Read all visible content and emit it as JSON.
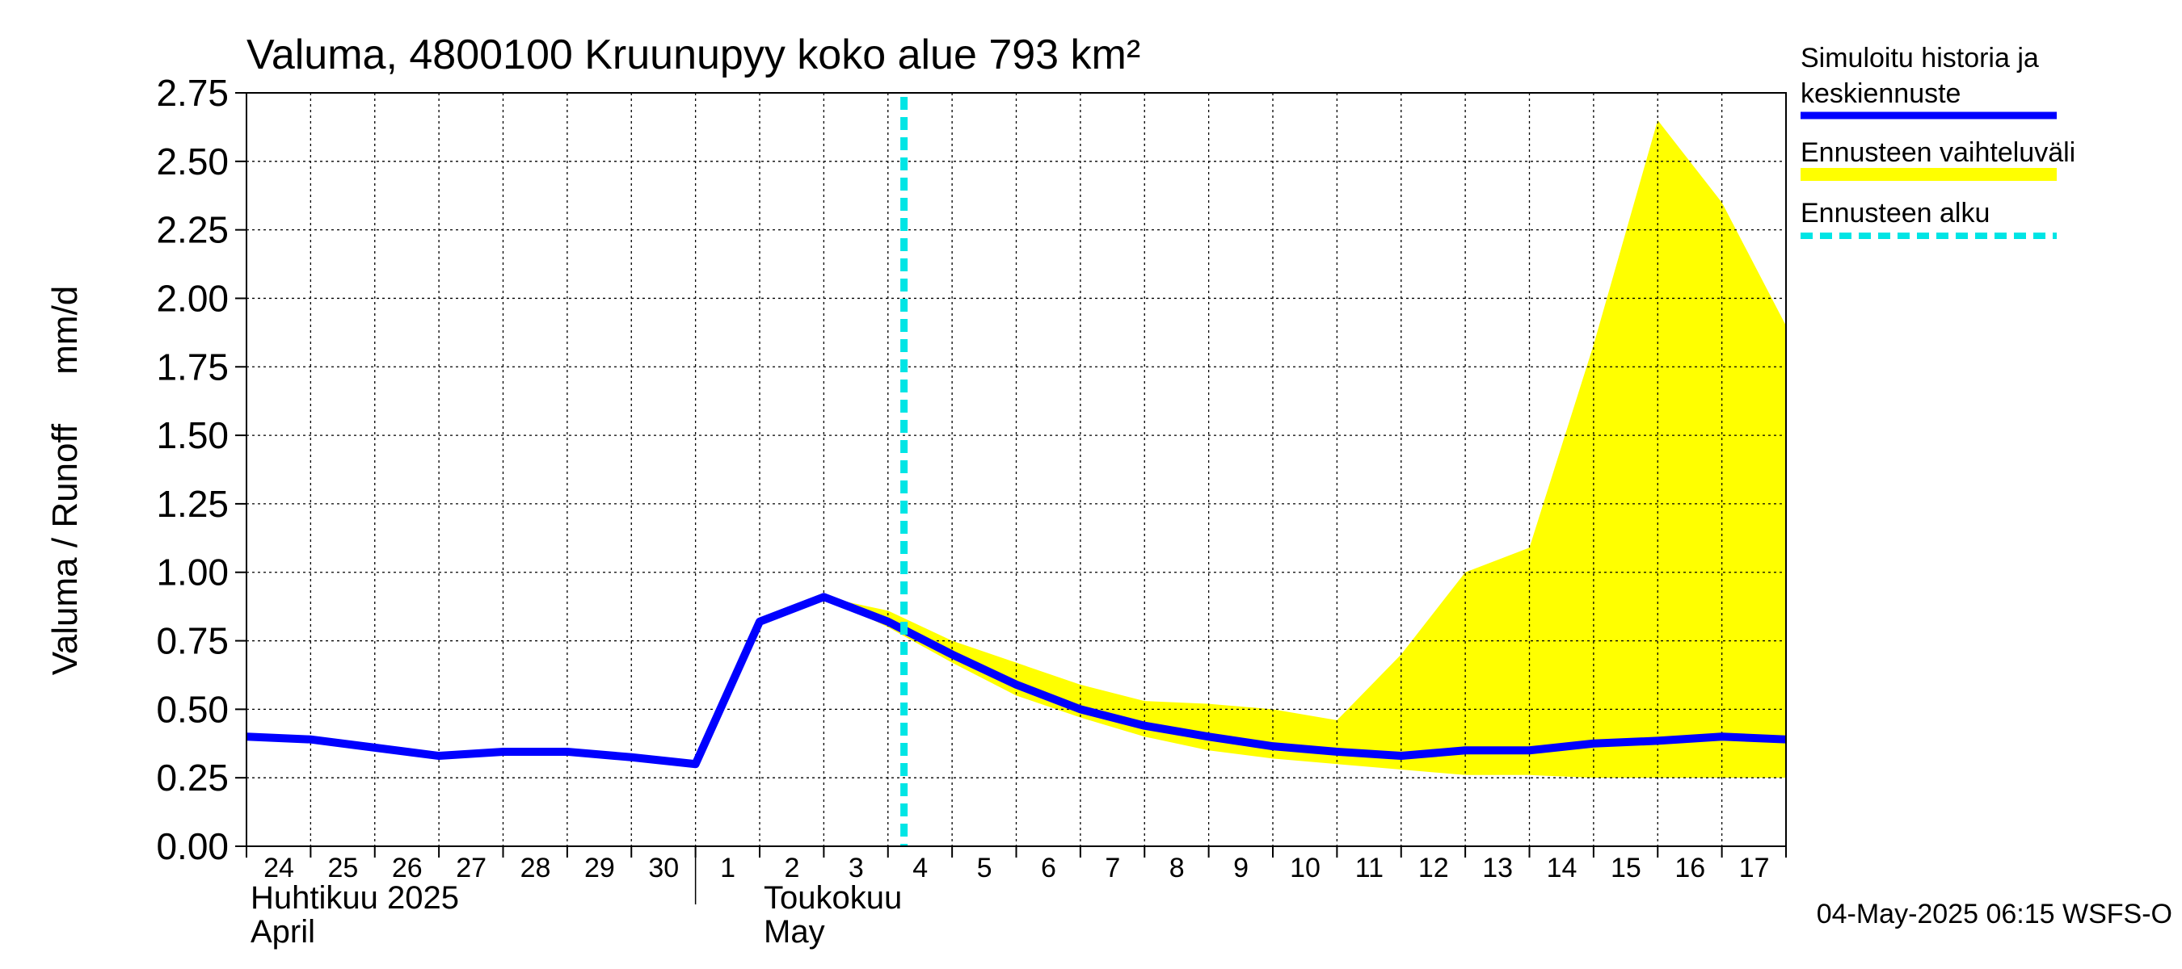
{
  "chart_data": {
    "type": "area",
    "title": "Valuma, 4800100 Kruunupyy koko alue 793 km²",
    "ylabel": "Valuma / Runoff     mm/d",
    "ylim": [
      0,
      2.75
    ],
    "yticks": [
      "0.00",
      "0.25",
      "0.50",
      "0.75",
      "1.00",
      "1.25",
      "1.50",
      "1.75",
      "2.00",
      "2.25",
      "2.50",
      "2.75"
    ],
    "xlim": [
      0,
      24
    ],
    "x_day_labels": [
      "24",
      "25",
      "26",
      "27",
      "28",
      "29",
      "30",
      "1",
      "2",
      "3",
      "4",
      "5",
      "6",
      "7",
      "8",
      "9",
      "10",
      "11",
      "12",
      "13",
      "14",
      "15",
      "16",
      "17"
    ],
    "month_labels": [
      {
        "line1": "Huhtikuu  2025",
        "line2": "April",
        "start_day": 0
      },
      {
        "line1": "Toukokuu",
        "line2": "May",
        "start_day": 8
      }
    ],
    "month_divider_day": 7,
    "forecast_start_day": 10.25,
    "series": [
      {
        "name": "Simuloitu historia ja keskiennuste",
        "color": "#0000ff",
        "x": [
          0,
          1,
          2,
          3,
          4,
          5,
          6,
          7,
          8,
          9,
          10,
          11,
          12,
          13,
          14,
          15,
          16,
          17,
          18,
          19,
          20,
          21,
          22,
          23,
          24
        ],
        "values": [
          0.4,
          0.39,
          0.36,
          0.33,
          0.345,
          0.345,
          0.325,
          0.3,
          0.82,
          0.91,
          0.82,
          0.7,
          0.59,
          0.5,
          0.44,
          0.4,
          0.365,
          0.345,
          0.33,
          0.35,
          0.35,
          0.375,
          0.385,
          0.4,
          0.39
        ]
      }
    ],
    "band": {
      "name": "Ennusteen vaihteluväli",
      "color": "#ffff00",
      "x": [
        9,
        10,
        11,
        12,
        13,
        14,
        15,
        16,
        17,
        18,
        19,
        20,
        21,
        22,
        23,
        24
      ],
      "upper": [
        0.91,
        0.86,
        0.75,
        0.67,
        0.59,
        0.53,
        0.52,
        0.5,
        0.46,
        0.7,
        1.0,
        1.09,
        1.83,
        2.65,
        2.35,
        1.9
      ],
      "lower": [
        0.91,
        0.8,
        0.67,
        0.55,
        0.47,
        0.4,
        0.35,
        0.32,
        0.3,
        0.28,
        0.26,
        0.26,
        0.25,
        0.25,
        0.25,
        0.25
      ]
    },
    "legend": {
      "position": "right",
      "items": [
        {
          "label_lines": [
            "Simuloitu historia ja",
            "keskiennuste"
          ],
          "color": "#0000ff",
          "style": "solid"
        },
        {
          "label_lines": [
            "Ennusteen vaihteluväli"
          ],
          "color": "#ffff00",
          "style": "band"
        },
        {
          "label_lines": [
            "Ennusteen alku"
          ],
          "color": "#00e5e5",
          "style": "dashed"
        }
      ]
    },
    "timestamp": "04-May-2025 06:15 WSFS-O"
  }
}
